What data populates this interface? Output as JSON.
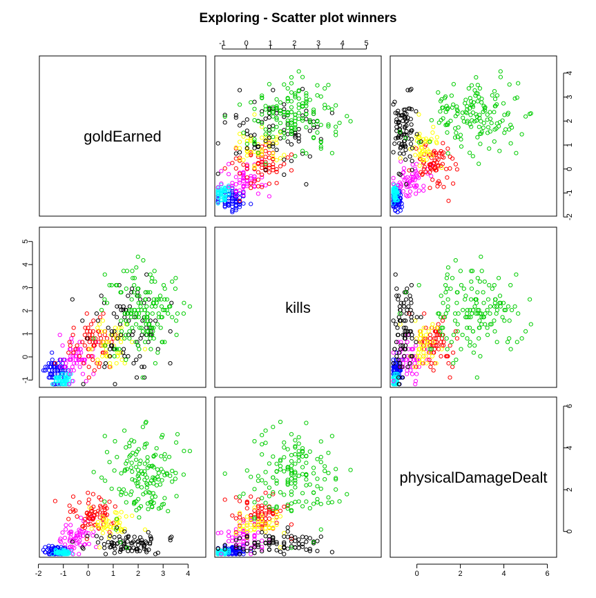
{
  "title": "Exploring - Scatter plot winners",
  "chart_data": {
    "type": "scatter",
    "layout": "scatterplot-matrix",
    "variables": [
      "goldEarned",
      "kills",
      "physicalDamageDealt"
    ],
    "ranges": {
      "goldEarned": [
        -1.85,
        4.6
      ],
      "kills": [
        -1.2,
        5.5
      ],
      "physicalDamageDealt": [
        -1.1,
        6.3
      ]
    },
    "ticks": {
      "goldEarned": [
        -2,
        -1,
        0,
        1,
        2,
        3,
        4
      ],
      "kills": [
        -1,
        0,
        1,
        2,
        3,
        4,
        5
      ],
      "physicalDamageDealt": [
        0,
        2,
        4,
        6
      ]
    },
    "groups": [
      {
        "color": "#0000ff",
        "centroid": {
          "goldEarned": -1.3,
          "kills": -0.6,
          "physicalDamageDealt": -0.95
        }
      },
      {
        "color": "#00ffff",
        "centroid": {
          "goldEarned": -1.0,
          "kills": -1.0,
          "physicalDamageDealt": -1.0
        }
      },
      {
        "color": "#ff00ff",
        "centroid": {
          "goldEarned": -0.4,
          "kills": -0.1,
          "physicalDamageDealt": -0.3
        }
      },
      {
        "color": "#ff0000",
        "centroid": {
          "goldEarned": 0.2,
          "kills": 0.6,
          "physicalDamageDealt": 0.8
        }
      },
      {
        "color": "#ffff00",
        "centroid": {
          "goldEarned": 0.8,
          "kills": 0.5,
          "physicalDamageDealt": 0.3
        }
      },
      {
        "color": "#000000",
        "centroid": {
          "goldEarned": 1.5,
          "kills": 1.5,
          "physicalDamageDealt": -0.6
        }
      },
      {
        "color": "#00cc00",
        "centroid": {
          "goldEarned": 2.2,
          "kills": 2.0,
          "physicalDamageDealt": 2.5
        }
      }
    ],
    "grid": false,
    "legend": "none"
  }
}
